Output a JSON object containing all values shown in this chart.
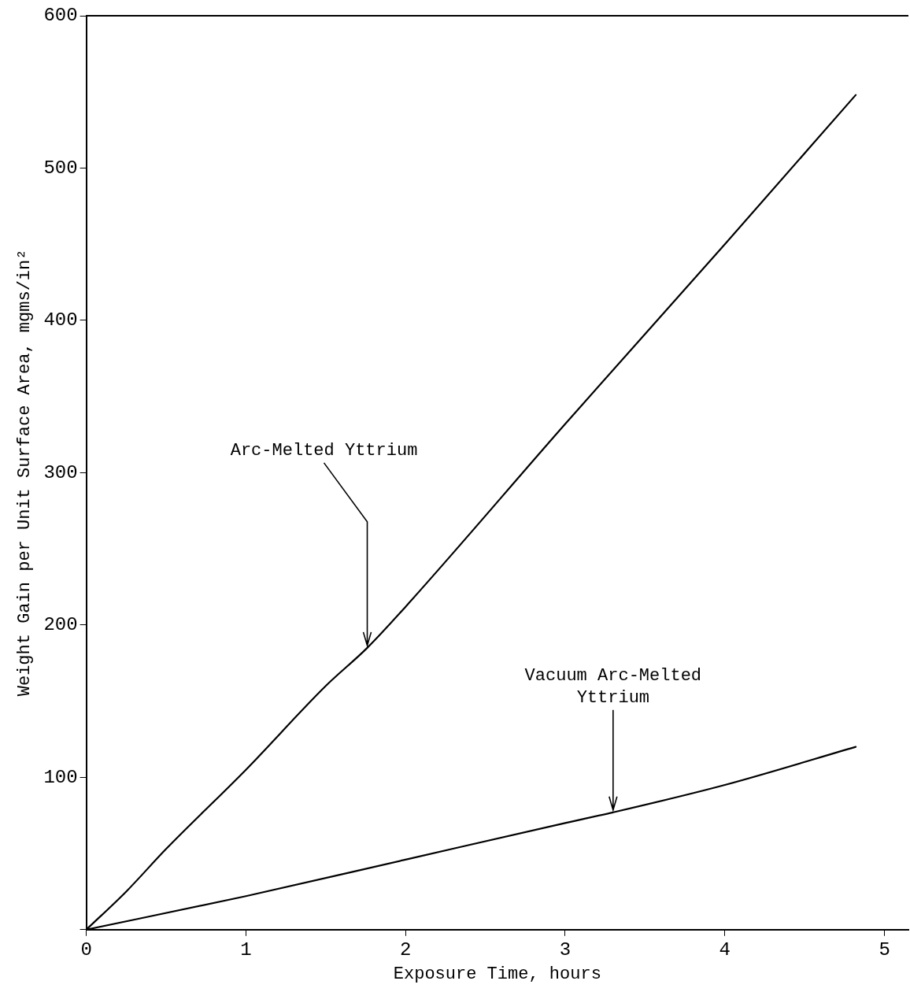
{
  "chart_data": {
    "type": "line",
    "xlabel": "Exposure Time, hours",
    "ylabel": "Weight Gain per Unit Surface Area, mgms/in²",
    "x": [
      0,
      0.25,
      0.5,
      1,
      1.5,
      1.76,
      2,
      3,
      4,
      4.82
    ],
    "series": [
      {
        "color": "#000000",
        "values": [
          0,
          25,
          53,
          105,
          160,
          185,
          212,
          332,
          450,
          548
        ]
      },
      {
        "color": "#000000",
        "x": [
          0,
          1,
          2,
          3,
          3.3,
          4,
          4.82
        ],
        "values": [
          0,
          22,
          46,
          70,
          77,
          95,
          120
        ]
      }
    ],
    "xlim": [
      0,
      5.15
    ],
    "xticks": [
      0,
      1,
      2,
      3,
      4,
      5
    ],
    "ylim": [
      0,
      600
    ],
    "yticks": [
      {
        "value": 0,
        "label": null
      },
      100,
      200,
      300,
      400,
      500,
      600
    ],
    "grid": false,
    "legend": false,
    "marker": "none",
    "line_style": "solid",
    "annotations": [
      {
        "text": "Arc-Melted Yttrium",
        "x": 1.76,
        "y": 185
      },
      {
        "text": "Vacuum Arc-Melted\nYttrium",
        "x": 3.3,
        "y": 77
      }
    ]
  }
}
